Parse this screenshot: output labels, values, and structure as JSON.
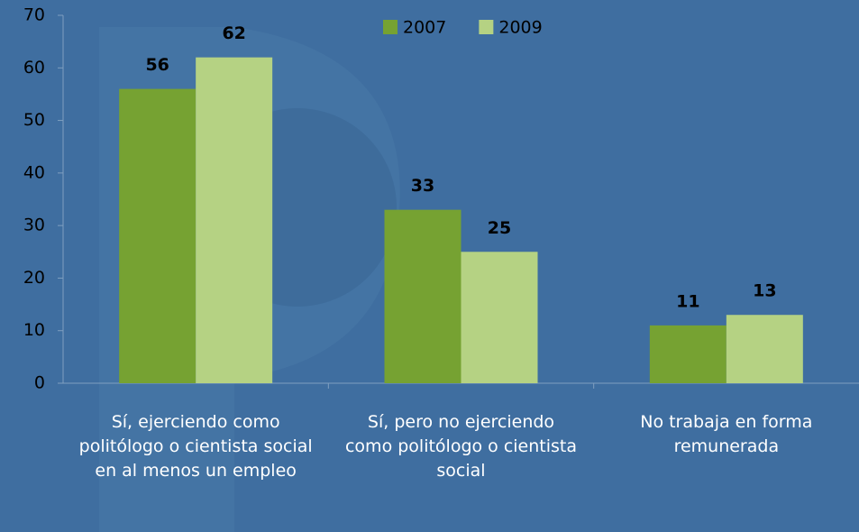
{
  "chart_data": {
    "type": "bar",
    "categories": [
      "Sí, ejerciendo como politólogo o cientista social en al menos un empleo",
      "Sí, pero no ejerciendo como politólogo o cientista social",
      "No trabaja en forma remunerada"
    ],
    "series": [
      {
        "name": "2007",
        "color": "#76a232",
        "values": [
          56,
          33,
          11
        ]
      },
      {
        "name": "2009",
        "color": "#b5d283",
        "values": [
          62,
          25,
          13
        ]
      }
    ],
    "ylim": [
      0,
      70
    ],
    "yticks": [
      0,
      10,
      20,
      30,
      40,
      50,
      60,
      70
    ],
    "legend": "top"
  }
}
